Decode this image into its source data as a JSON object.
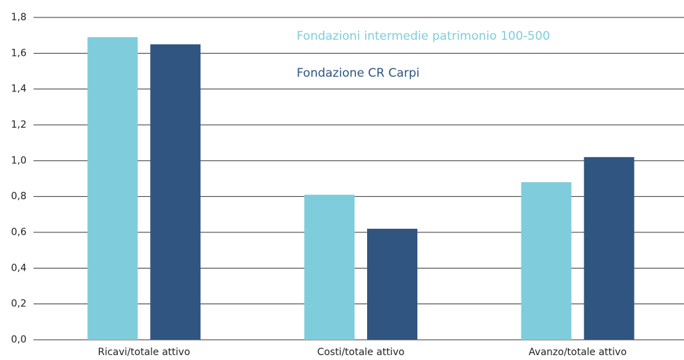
{
  "chart_data": {
    "type": "bar",
    "categories": [
      "Ricavi/totale attivo",
      "Costi/totale attivo",
      "Avanzo/totale attivo"
    ],
    "series": [
      {
        "name": "Fondazioni intermedie patrimonio 100-500",
        "color": "#7fcddc",
        "values": [
          1.69,
          0.81,
          0.88
        ]
      },
      {
        "name": "Fondazione CR Carpi",
        "color": "#2f5580",
        "values": [
          1.65,
          0.62,
          1.02
        ]
      }
    ],
    "ylim": [
      0,
      1.8
    ],
    "yticks": [
      {
        "value": 0,
        "label": "0,0"
      },
      {
        "value": 0.2,
        "label": "0,2"
      },
      {
        "value": 0.4,
        "label": "0,4"
      },
      {
        "value": 0.6,
        "label": "0,6"
      },
      {
        "value": 0.8,
        "label": "0,8"
      },
      {
        "value": 1.0,
        "label": "1,0"
      },
      {
        "value": 1.2,
        "label": "1,2"
      },
      {
        "value": 1.4,
        "label": "1,4"
      },
      {
        "value": 1.6,
        "label": "1,6"
      },
      {
        "value": 1.8,
        "label": "1,8"
      }
    ],
    "grid": true
  }
}
